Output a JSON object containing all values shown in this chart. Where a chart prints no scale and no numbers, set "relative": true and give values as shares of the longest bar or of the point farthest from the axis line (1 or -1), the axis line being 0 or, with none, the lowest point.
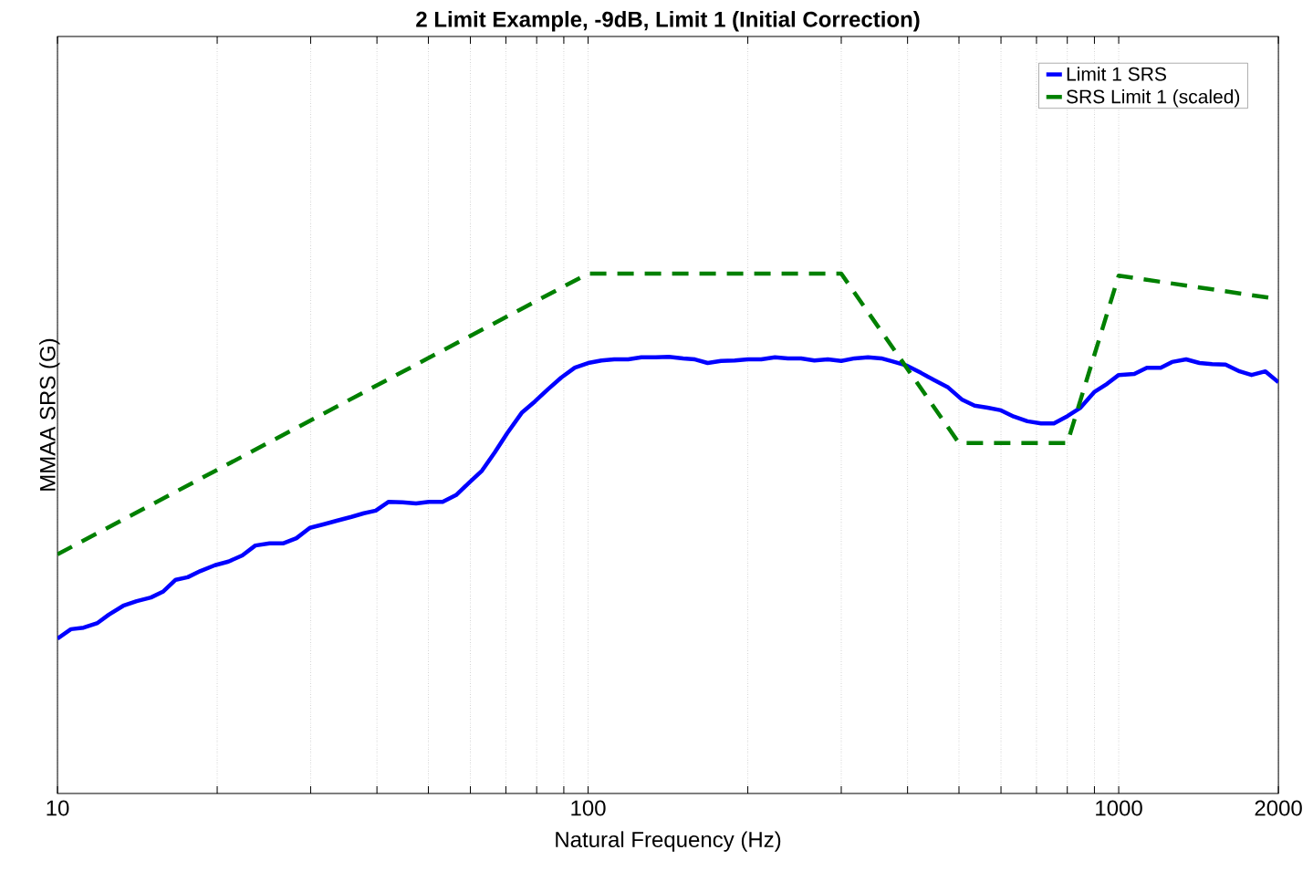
{
  "chart_data": {
    "type": "line",
    "title": "2 Limit Example, -9dB, Limit 1 (Initial Correction)",
    "xlabel": "Natural Frequency (Hz)",
    "ylabel": "MMAA SRS (G)",
    "relative": true,
    "log": "x",
    "grid": "x",
    "legend": "top right",
    "tick_labels": "x",
    "xlim": [
      10,
      2000
    ],
    "xticks": [
      10,
      {
        "value": 20,
        "label": null
      },
      {
        "value": 30,
        "label": null
      },
      {
        "value": 40,
        "label": null
      },
      {
        "value": 50,
        "label": null
      },
      {
        "value": 60,
        "label": null
      },
      {
        "value": 70,
        "label": null
      },
      {
        "value": 80,
        "label": null
      },
      {
        "value": 90,
        "label": null
      },
      100,
      {
        "value": 200,
        "label": null
      },
      {
        "value": 300,
        "label": null
      },
      {
        "value": 400,
        "label": null
      },
      {
        "value": 500,
        "label": null
      },
      {
        "value": 600,
        "label": null
      },
      {
        "value": 700,
        "label": null
      },
      {
        "value": 800,
        "label": null
      },
      {
        "value": 900,
        "label": null
      },
      1000,
      2000
    ],
    "series": [
      {
        "name": "Limit 1 SRS",
        "color": "#0000ff",
        "line_style": "solid",
        "x": [
          10,
          10.6,
          11.2,
          11.9,
          12.5,
          13.3,
          14.1,
          15.0,
          15.8,
          16.7,
          17.6,
          18.6,
          19.8,
          21.0,
          22.3,
          23.6,
          25.1,
          26.6,
          28.2,
          29.9,
          31.8,
          33.7,
          35.8,
          37.8,
          39.8,
          42.1,
          44.7,
          47.4,
          50.1,
          53.2,
          56.4,
          59.7,
          63.1,
          66.7,
          70.4,
          75.1,
          79.4,
          83.9,
          89.0,
          94.4,
          100,
          106,
          112,
          119,
          126,
          134,
          142,
          151,
          159,
          168,
          178,
          189,
          200,
          212,
          225,
          238,
          252,
          267,
          283,
          300,
          318,
          337,
          357,
          378,
          399,
          424,
          449,
          477,
          506,
          535,
          566,
          600,
          634,
          673,
          714,
          755,
          801,
          847,
          899,
          951,
          1000,
          1070,
          1130,
          1200,
          1260,
          1340,
          1420,
          1500,
          1590,
          1690,
          1780,
          1890,
          2000
        ],
        "values": [
          0.298,
          0.316,
          0.319,
          0.328,
          0.344,
          0.361,
          0.37,
          0.377,
          0.388,
          0.411,
          0.416,
          0.428,
          0.439,
          0.446,
          0.458,
          0.477,
          0.481,
          0.481,
          0.491,
          0.511,
          0.518,
          0.525,
          0.532,
          0.539,
          0.544,
          0.561,
          0.56,
          0.558,
          0.561,
          0.561,
          0.574,
          0.598,
          0.621,
          0.656,
          0.693,
          0.733,
          0.754,
          0.777,
          0.8,
          0.819,
          0.828,
          0.833,
          0.835,
          0.835,
          0.839,
          0.839,
          0.84,
          0.837,
          0.835,
          0.828,
          0.832,
          0.833,
          0.835,
          0.835,
          0.839,
          0.837,
          0.837,
          0.833,
          0.835,
          0.832,
          0.837,
          0.839,
          0.837,
          0.83,
          0.823,
          0.809,
          0.795,
          0.781,
          0.758,
          0.746,
          0.742,
          0.737,
          0.725,
          0.716,
          0.712,
          0.712,
          0.726,
          0.742,
          0.772,
          0.788,
          0.805,
          0.807,
          0.819,
          0.819,
          0.83,
          0.835,
          0.828,
          0.826,
          0.825,
          0.812,
          0.805,
          0.812,
          0.791
        ]
      },
      {
        "name": "SRS Limit 1 (scaled)",
        "color": "#008000",
        "line_style": "dashed",
        "x": [
          10,
          100,
          300,
          500,
          800,
          1000,
          2000
        ],
        "values": [
          0.46,
          1,
          1,
          0.674,
          0.674,
          0.996,
          0.951
        ]
      }
    ]
  }
}
